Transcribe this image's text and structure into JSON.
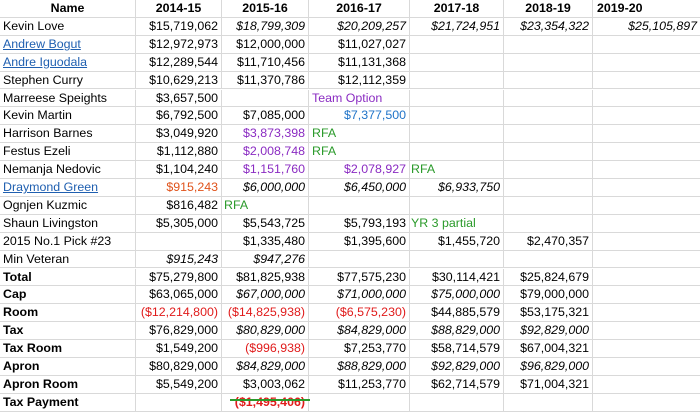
{
  "colors": {
    "red": "#e01b1b",
    "purple": "#8a2bc2",
    "blue": "#1f73c8",
    "green": "#2a9a2a",
    "orange": "#e0531b",
    "link": "#1f5fb0"
  },
  "header": [
    "Name",
    "2014-15",
    "2015-16",
    "2016-17",
    "2017-18",
    "2018-19",
    "2019-20"
  ],
  "rows": [
    {
      "name": "Kevin Love",
      "v": [
        "$15,719,062",
        "$18,799,309",
        "$20,209,257",
        "$21,724,951",
        "$23,354,322",
        "$25,105,897"
      ]
    },
    {
      "name": "Andrew Bogut",
      "v": [
        "$12,972,973",
        "$12,000,000",
        "$11,027,027",
        "",
        "",
        ""
      ]
    },
    {
      "name": "Andre Iguodala",
      "v": [
        "$12,289,544",
        "$11,710,456",
        "$11,131,368",
        "",
        "",
        ""
      ]
    },
    {
      "name": "Stephen Curry",
      "v": [
        "$10,629,213",
        "$11,370,786",
        "$12,112,359",
        "",
        "",
        ""
      ]
    },
    {
      "name": "Marreese Speights",
      "v": [
        "$3,657,500",
        "",
        "",
        "",
        "",
        ""
      ],
      "note2": "Team Option"
    },
    {
      "name": "Kevin Martin",
      "v": [
        "$6,792,500",
        "$7,085,000",
        "$7,377,500",
        "",
        "",
        ""
      ]
    },
    {
      "name": "Harrison Barnes",
      "v": [
        "$3,049,920",
        "$3,873,398",
        "",
        "",
        "",
        ""
      ],
      "note2": "RFA"
    },
    {
      "name": "Festus Ezeli",
      "v": [
        "$1,112,880",
        "$2,008,748",
        "",
        "",
        "",
        ""
      ],
      "note2": "RFA"
    },
    {
      "name": "Nemanja Nedovic",
      "v": [
        "$1,104,240",
        "$1,151,760",
        "$2,078,927",
        "",
        "",
        ""
      ],
      "note3": "RFA"
    },
    {
      "name": "Draymond Green",
      "v": [
        "$915,243",
        "$6,000,000",
        "$6,450,000",
        "$6,933,750",
        "",
        ""
      ]
    },
    {
      "name": "Ognjen Kuzmic",
      "v": [
        "$816,482",
        "",
        "",
        "",
        "",
        ""
      ],
      "note1": "RFA"
    },
    {
      "name": "Shaun Livingston",
      "v": [
        "$5,305,000",
        "$5,543,725",
        "$5,793,193",
        "",
        "",
        ""
      ],
      "note3": "YR 3 partial"
    },
    {
      "name": "2015 No.1 Pick #23",
      "v": [
        "",
        "$1,335,480",
        "$1,395,600",
        "$1,455,720",
        "$2,470,357",
        ""
      ]
    },
    {
      "name": "Min Veteran",
      "v": [
        "$915,243",
        "$947,276",
        "",
        "",
        "",
        ""
      ]
    },
    {
      "name": "Total",
      "v": [
        "$75,279,800",
        "$81,825,938",
        "$77,575,230",
        "$30,114,421",
        "$25,824,679",
        ""
      ]
    },
    {
      "name": "Cap",
      "v": [
        "$63,065,000",
        "$67,000,000",
        "$71,000,000",
        "$75,000,000",
        "$79,000,000",
        ""
      ]
    },
    {
      "name": "Room",
      "v": [
        "($12,214,800)",
        "($14,825,938)",
        "($6,575,230)",
        "$44,885,579",
        "$53,175,321",
        ""
      ]
    },
    {
      "name": "Tax",
      "v": [
        "$76,829,000",
        "$80,829,000",
        "$84,829,000",
        "$88,829,000",
        "$92,829,000",
        ""
      ]
    },
    {
      "name": "Tax Room",
      "v": [
        "$1,549,200",
        "($996,938)",
        "$7,253,770",
        "$58,714,579",
        "$67,004,321",
        ""
      ]
    },
    {
      "name": "Apron",
      "v": [
        "$80,829,000",
        "$84,829,000",
        "$88,829,000",
        "$92,829,000",
        "$96,829,000",
        ""
      ]
    },
    {
      "name": "Apron Room",
      "v": [
        "$5,549,200",
        "$3,003,062",
        "$11,253,770",
        "$62,714,579",
        "$71,004,321",
        ""
      ]
    },
    {
      "name": "Tax Payment",
      "v": [
        "",
        "($1,495,406)",
        "",
        "",
        "",
        ""
      ]
    }
  ]
}
